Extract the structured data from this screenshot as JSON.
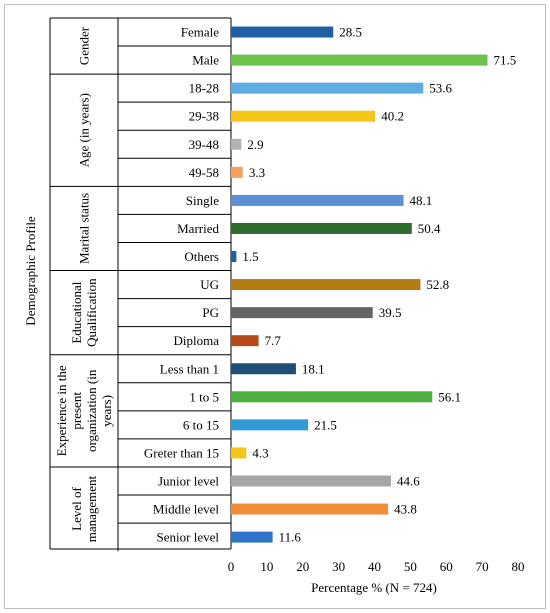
{
  "chart_data": {
    "type": "bar",
    "orientation": "horizontal",
    "profile_label": "Demographic Profile",
    "xlabel": "Percentage % (N = 724)",
    "xlim": [
      0,
      80
    ],
    "xticks": [
      0,
      10,
      20,
      30,
      40,
      50,
      60,
      70,
      80
    ],
    "grid": false,
    "groups": [
      {
        "label": [
          "Gender"
        ],
        "items": [
          {
            "category": "Female",
            "value": 28.5,
            "color": "#1f5fa6"
          },
          {
            "category": "Male",
            "value": 71.5,
            "color": "#6cc24a"
          }
        ]
      },
      {
        "label": [
          "Age (in years)"
        ],
        "items": [
          {
            "category": "18-28",
            "value": 53.6,
            "color": "#5dade2"
          },
          {
            "category": "29-38",
            "value": 40.2,
            "color": "#f5c518"
          },
          {
            "category": "39-48",
            "value": 2.9,
            "color": "#b3b3b3"
          },
          {
            "category": "49-58",
            "value": 3.3,
            "color": "#f4a261"
          }
        ]
      },
      {
        "label": [
          "Marital status"
        ],
        "items": [
          {
            "category": "Single",
            "value": 48.1,
            "color": "#5b8fd6"
          },
          {
            "category": "Married",
            "value": 50.4,
            "color": "#2e6b2e"
          },
          {
            "category": "Others",
            "value": 1.5,
            "color": "#1f5fa6"
          }
        ]
      },
      {
        "label": [
          "Educational",
          "Qualification"
        ],
        "items": [
          {
            "category": "UG",
            "value": 52.8,
            "color": "#b07d12"
          },
          {
            "category": "PG",
            "value": 39.5,
            "color": "#636363"
          },
          {
            "category": "Diploma",
            "value": 7.7,
            "color": "#b84a1a"
          }
        ]
      },
      {
        "label": [
          "Experience in the",
          "present",
          "organization (in",
          "years)"
        ],
        "items": [
          {
            "category": "Less than 1",
            "value": 18.1,
            "color": "#1f4e79"
          },
          {
            "category": "1 to 5",
            "value": 56.1,
            "color": "#4caf3e"
          },
          {
            "category": "6 to 15",
            "value": 21.5,
            "color": "#2e9bd6"
          },
          {
            "category": "Greter than 15",
            "value": 4.3,
            "color": "#f5c518"
          }
        ]
      },
      {
        "label": [
          "Level of",
          "management"
        ],
        "items": [
          {
            "category": "Junior level",
            "value": 44.6,
            "color": "#a6a6a6"
          },
          {
            "category": "Middle level",
            "value": 43.8,
            "color": "#f28c38"
          },
          {
            "category": "Senior level",
            "value": 11.6,
            "color": "#2e75c9"
          }
        ]
      }
    ]
  }
}
